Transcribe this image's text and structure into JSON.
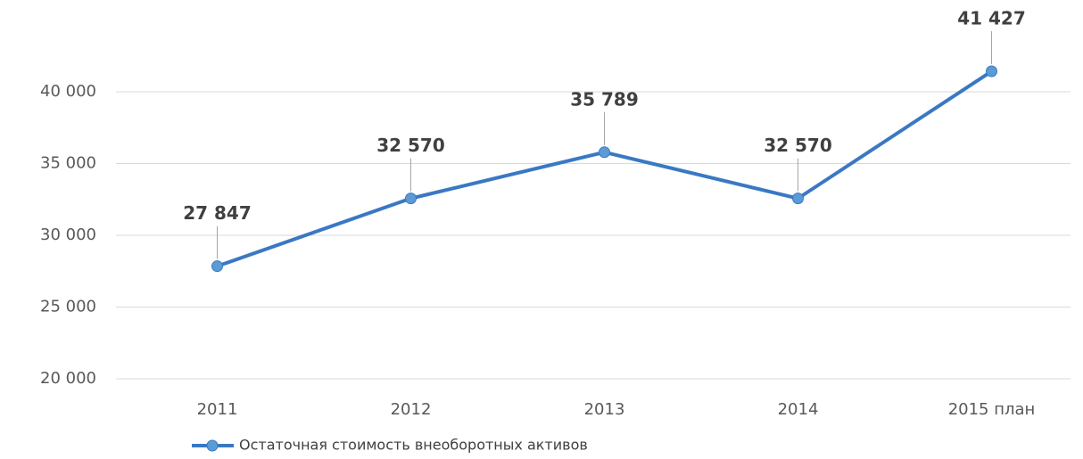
{
  "chart_data": {
    "type": "line",
    "categories": [
      "2011",
      "2012",
      "2013",
      "2014",
      "2015 план"
    ],
    "series": [
      {
        "name": "Остаточная стоимость внеоборотных активов",
        "color": "#3a78c3",
        "marker_color": "#5b9bd5",
        "values": [
          27847,
          32570,
          35789,
          32570,
          41427
        ],
        "value_labels": [
          "27 847",
          "32 570",
          "35 789",
          "32 570",
          "41 427"
        ]
      }
    ],
    "ylim": [
      20000,
      45000
    ],
    "yticks": [
      {
        "value": 20000,
        "label": "20 000"
      },
      {
        "value": 25000,
        "label": "25 000"
      },
      {
        "value": 30000,
        "label": "30 000"
      },
      {
        "value": 35000,
        "label": "35 000"
      },
      {
        "value": 40000,
        "label": "40 000"
      }
    ],
    "grid": true,
    "legend": "bottom-left"
  }
}
